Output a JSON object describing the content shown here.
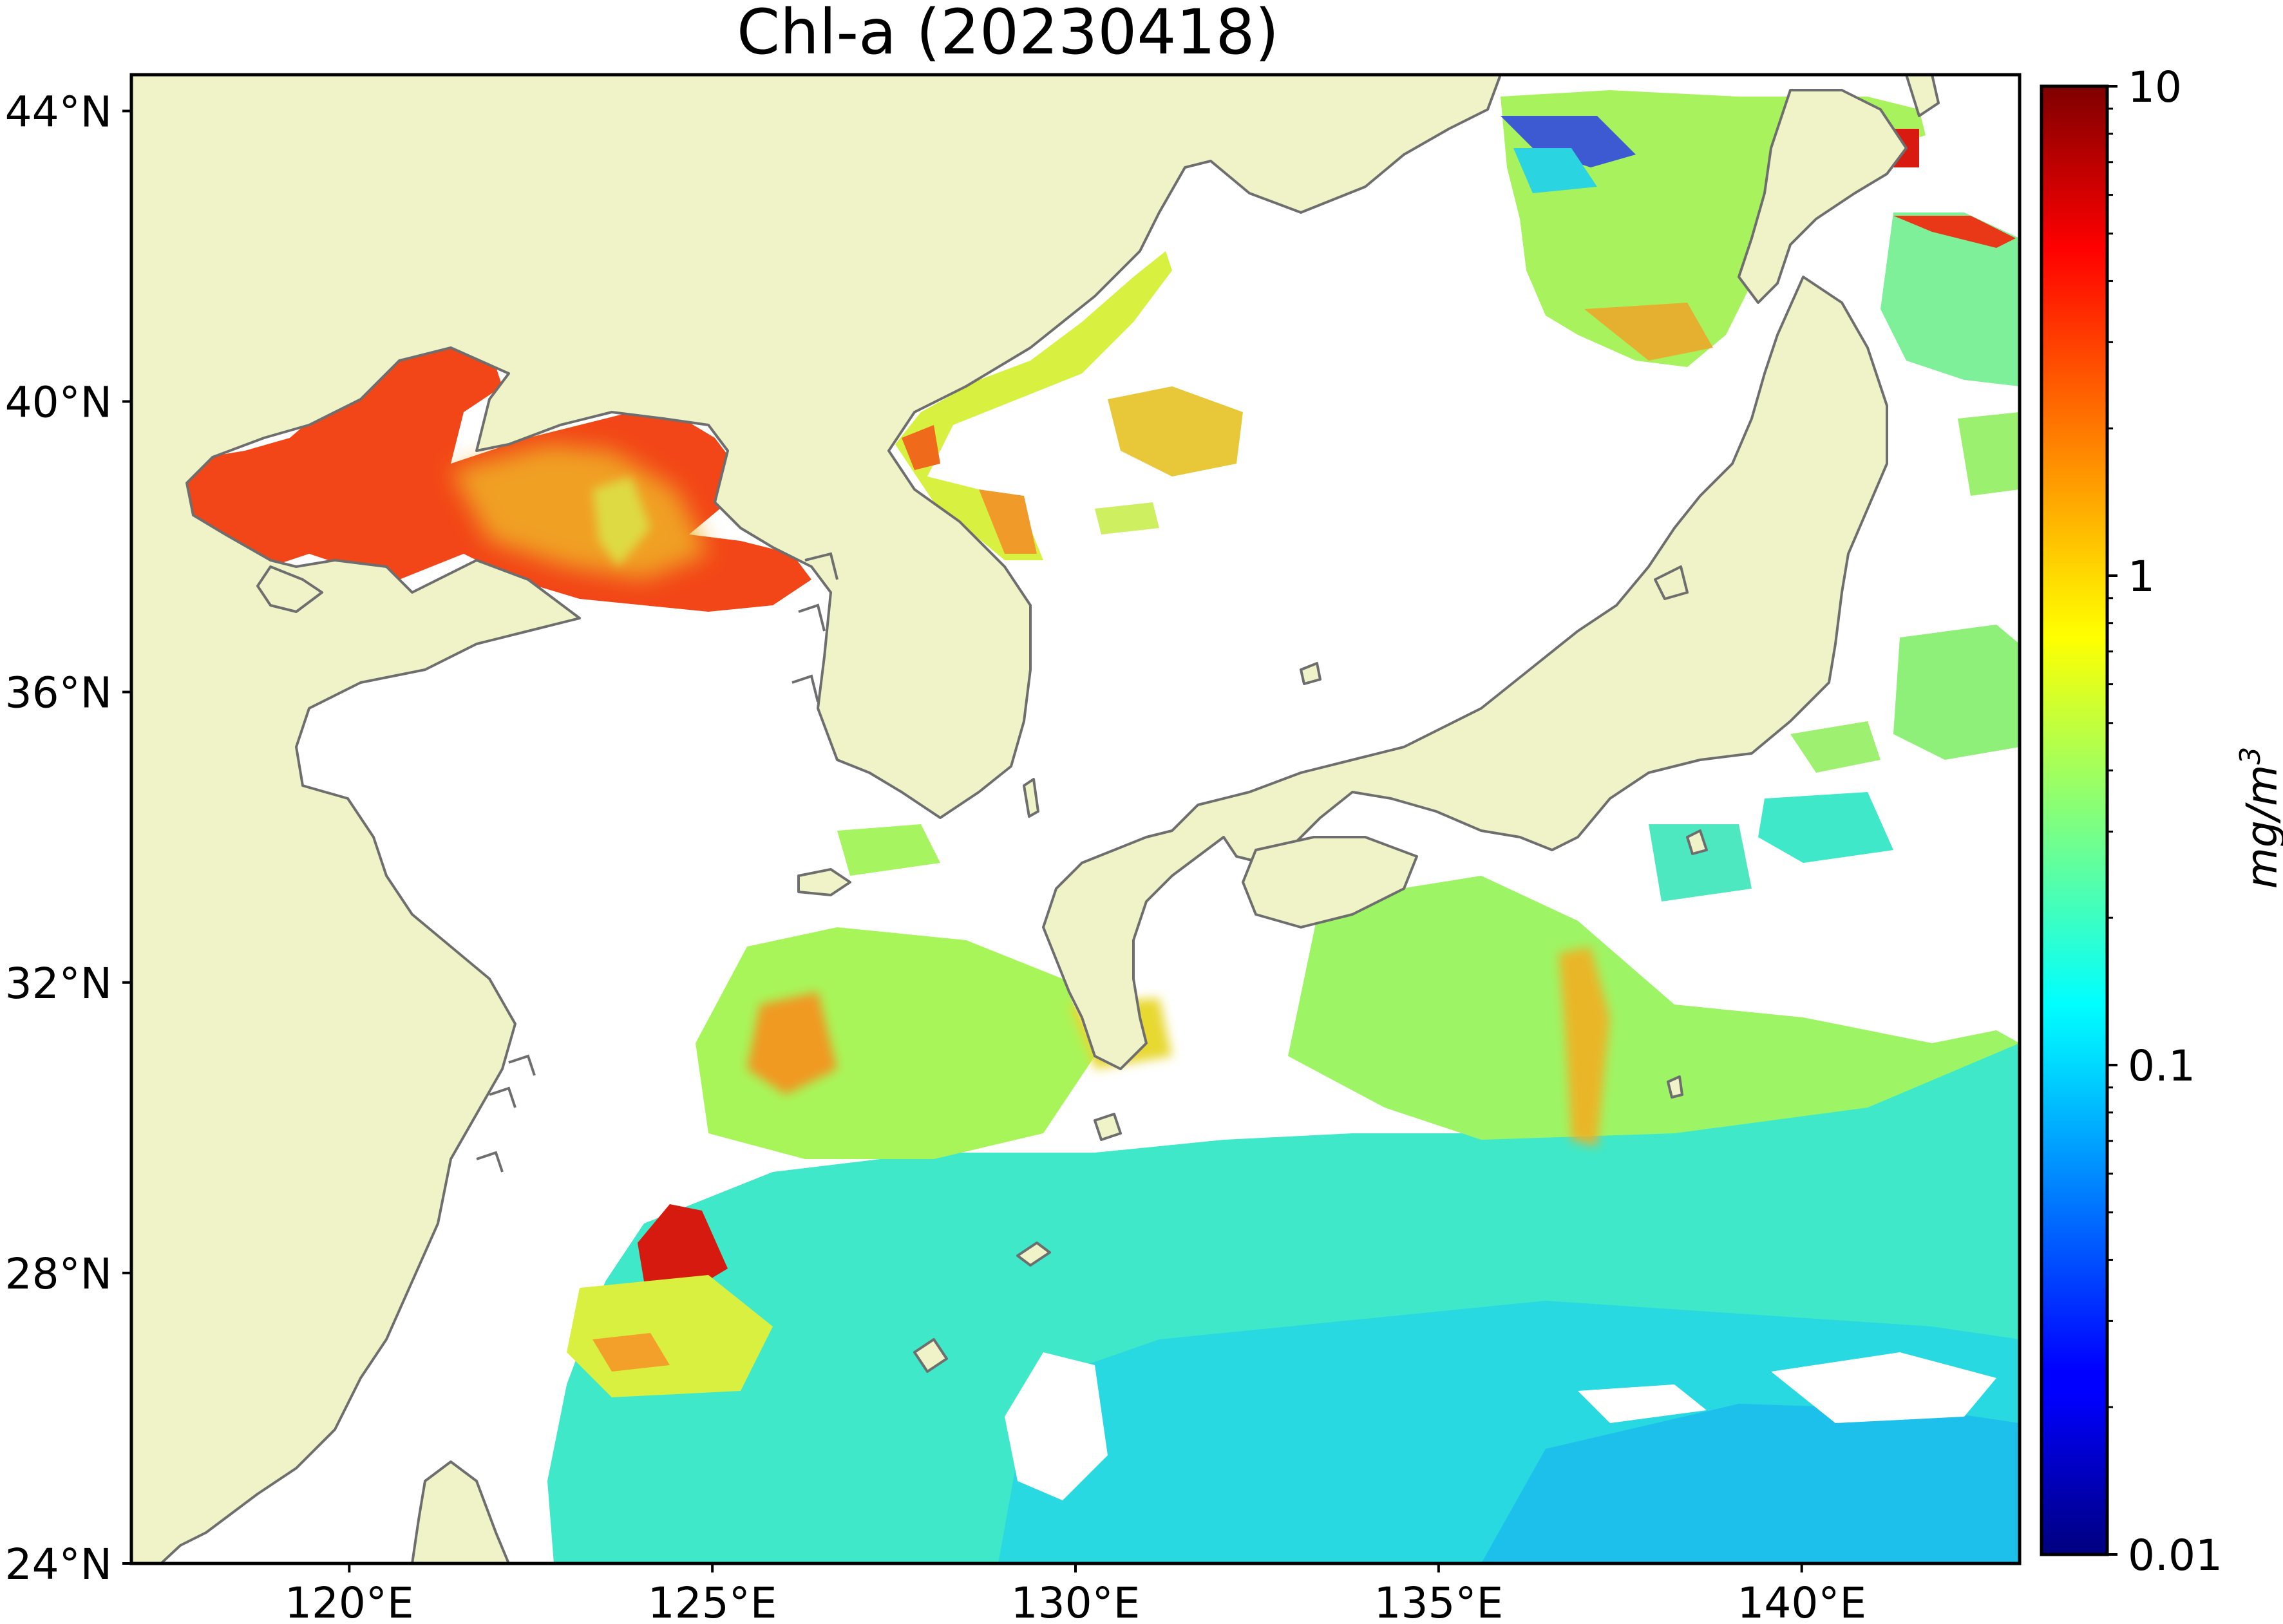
{
  "title": "Chl-a (20230418)",
  "map": {
    "extent": {
      "lon": [
        117,
        143
      ],
      "lat": [
        24,
        44.5
      ]
    },
    "land_color": "#f0f3c8",
    "ocean_color": "#ffffff",
    "coastline_color": "#6e6e6e",
    "lat_ticks": [
      {
        "value": 44,
        "label": "44°N"
      },
      {
        "value": 40,
        "label": "40°N"
      },
      {
        "value": 36,
        "label": "36°N"
      },
      {
        "value": 32,
        "label": "32°N"
      },
      {
        "value": 28,
        "label": "28°N"
      },
      {
        "value": 24,
        "label": "24°N"
      }
    ],
    "lon_ticks": [
      {
        "value": 120,
        "label": "120°E"
      },
      {
        "value": 125,
        "label": "125°E"
      },
      {
        "value": 130,
        "label": "130°E"
      },
      {
        "value": 135,
        "label": "135°E"
      },
      {
        "value": 140,
        "label": "140°E"
      }
    ]
  },
  "colorbar": {
    "colormap": "jet",
    "scale": "log",
    "min": 0.01,
    "max": 10,
    "ticks": [
      {
        "value": 10,
        "label": "10"
      },
      {
        "value": 1,
        "label": "1"
      },
      {
        "value": 0.1,
        "label": "0.1"
      },
      {
        "value": 0.01,
        "label": "0.01"
      }
    ],
    "unit_label": "mg/m",
    "unit_superscript": "3"
  }
}
